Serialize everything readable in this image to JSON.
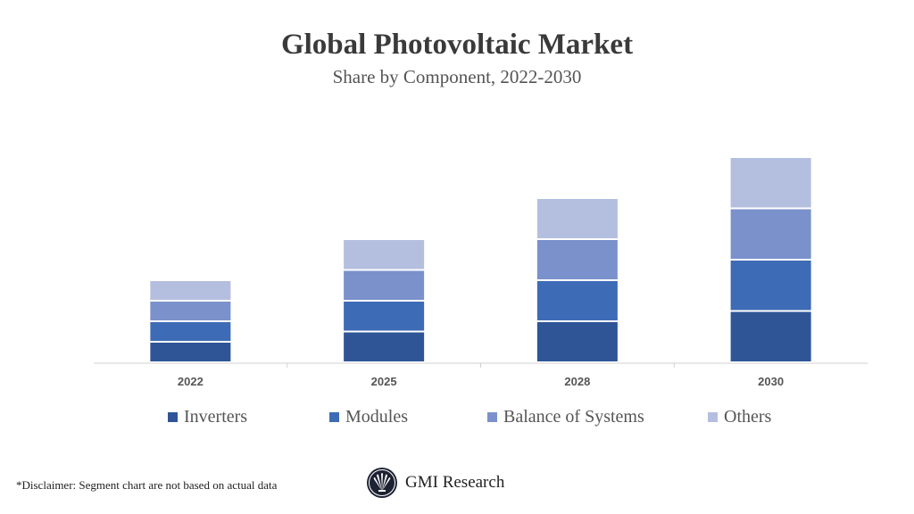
{
  "chart_data": {
    "type": "stacked-bar",
    "title": "Global Photovoltaic Market",
    "subtitle": "Share by Component, 2022-2030",
    "categories": [
      "2022",
      "2025",
      "2028",
      "2030"
    ],
    "series": [
      {
        "name": "Inverters",
        "color": "#2F5597",
        "values": [
          1,
          1.5,
          2,
          2.5
        ]
      },
      {
        "name": "Modules",
        "color": "#3E6BB5",
        "values": [
          1,
          1.5,
          2,
          2.5
        ]
      },
      {
        "name": "Balance of Systems",
        "color": "#7A91CB",
        "values": [
          1,
          1.5,
          2,
          2.5
        ]
      },
      {
        "name": "Others",
        "color": "#B4BFDF",
        "values": [
          1,
          1.5,
          2,
          2.5
        ]
      }
    ],
    "ylim": [
      0,
      10
    ],
    "y_axis_visible": false,
    "grid": false,
    "legend": "bottom"
  },
  "footer": {
    "disclaimer": "*Disclaimer:  Segment chart are not based on actual data",
    "brand": "GMI Research"
  }
}
